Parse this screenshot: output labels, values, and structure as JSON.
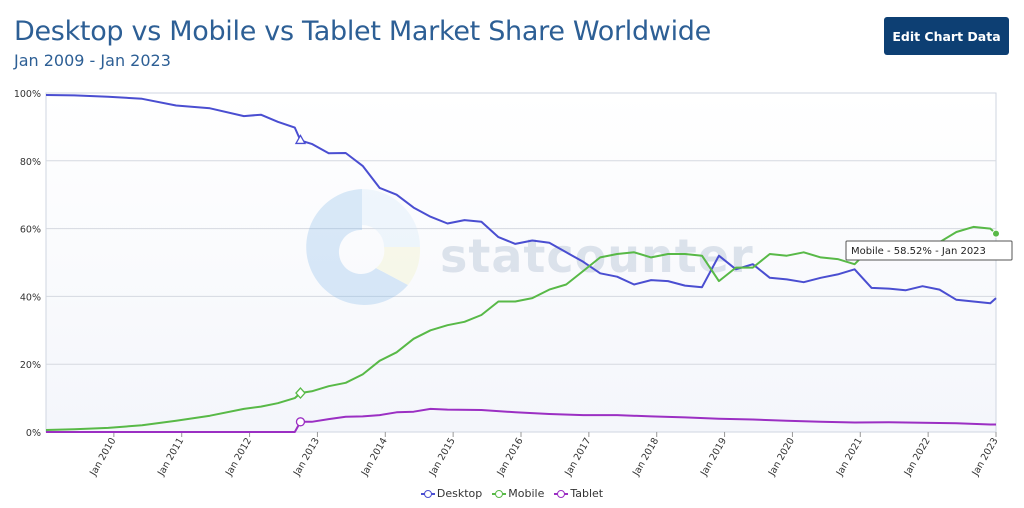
{
  "header": {
    "title": "Desktop vs Mobile vs Tablet Market Share Worldwide",
    "subtitle": "Jan 2009 - Jan 2023",
    "edit_button_label": "Edit Chart Data"
  },
  "watermark": {
    "text": "statcounter"
  },
  "tooltip": {
    "text": "Mobile - 58.52% - Jan 2023"
  },
  "chart_data": {
    "type": "line",
    "title": "Desktop vs Mobile vs Tablet Market Share Worldwide",
    "subtitle": "Jan 2009 - Jan 2023",
    "x_range": [
      "2009-01",
      "2023-01"
    ],
    "ylim": [
      0,
      100
    ],
    "y_ticks": [
      "0%",
      "20%",
      "40%",
      "60%",
      "80%",
      "100%"
    ],
    "y_tick_values": [
      0,
      20,
      40,
      60,
      80,
      100
    ],
    "x_tick_labels": [
      "Jan 2010",
      "Jan 2011",
      "Jan 2012",
      "Jan 2013",
      "Jan 2014",
      "Jan 2015",
      "Jan 2016",
      "Jan 2017",
      "Jan 2018",
      "Jan 2019",
      "Jan 2020",
      "Jan 2021",
      "Jan 2022",
      "Jan 2023"
    ],
    "x_tick_dates": [
      "2010-01",
      "2011-01",
      "2012-01",
      "2013-01",
      "2014-01",
      "2015-01",
      "2016-01",
      "2017-01",
      "2018-01",
      "2019-01",
      "2020-01",
      "2021-01",
      "2022-01",
      "2023-01"
    ],
    "grid": true,
    "legend_position": "bottom",
    "tooltip_point": {
      "series": "Mobile",
      "date": "2023-01",
      "value": 58.52
    },
    "series": [
      {
        "name": "Desktop",
        "color": "#4a4ed1",
        "points": [
          [
            "2009-01",
            99.4
          ],
          [
            "2009-06",
            99.3
          ],
          [
            "2009-12",
            98.9
          ],
          [
            "2010-06",
            98.3
          ],
          [
            "2010-12",
            96.3
          ],
          [
            "2011-06",
            95.5
          ],
          [
            "2011-12",
            93.2
          ],
          [
            "2012-03",
            93.6
          ],
          [
            "2012-06",
            91.5
          ],
          [
            "2012-09",
            89.8
          ],
          [
            "2012-10",
            86.0
          ],
          [
            "2012-12",
            85.0
          ],
          [
            "2013-03",
            82.2
          ],
          [
            "2013-06",
            82.3
          ],
          [
            "2013-09",
            78.5
          ],
          [
            "2013-12",
            72.0
          ],
          [
            "2014-03",
            70.0
          ],
          [
            "2014-06",
            66.2
          ],
          [
            "2014-09",
            63.5
          ],
          [
            "2014-12",
            61.5
          ],
          [
            "2015-03",
            62.5
          ],
          [
            "2015-06",
            62.0
          ],
          [
            "2015-09",
            57.5
          ],
          [
            "2015-12",
            55.5
          ],
          [
            "2016-03",
            56.5
          ],
          [
            "2016-06",
            55.8
          ],
          [
            "2016-09",
            53.0
          ],
          [
            "2016-12",
            50.2
          ],
          [
            "2017-03",
            46.8
          ],
          [
            "2017-06",
            45.8
          ],
          [
            "2017-09",
            43.5
          ],
          [
            "2017-12",
            44.8
          ],
          [
            "2018-03",
            44.5
          ],
          [
            "2018-06",
            43.2
          ],
          [
            "2018-09",
            42.7
          ],
          [
            "2018-12",
            52.0
          ],
          [
            "2019-03",
            48.0
          ],
          [
            "2019-06",
            49.5
          ],
          [
            "2019-09",
            45.5
          ],
          [
            "2019-12",
            45.0
          ],
          [
            "2020-03",
            44.2
          ],
          [
            "2020-06",
            45.5
          ],
          [
            "2020-09",
            46.5
          ],
          [
            "2020-12",
            48.0
          ],
          [
            "2021-03",
            42.5
          ],
          [
            "2021-06",
            42.3
          ],
          [
            "2021-09",
            41.8
          ],
          [
            "2021-12",
            43.0
          ],
          [
            "2022-03",
            42.0
          ],
          [
            "2022-06",
            39.0
          ],
          [
            "2022-09",
            38.5
          ],
          [
            "2022-12",
            38.0
          ],
          [
            "2023-01",
            39.5
          ]
        ]
      },
      {
        "name": "Mobile",
        "color": "#58b947",
        "points": [
          [
            "2009-01",
            0.6
          ],
          [
            "2009-06",
            0.8
          ],
          [
            "2009-12",
            1.2
          ],
          [
            "2010-06",
            2.0
          ],
          [
            "2010-12",
            3.3
          ],
          [
            "2011-06",
            4.8
          ],
          [
            "2011-12",
            6.8
          ],
          [
            "2012-03",
            7.5
          ],
          [
            "2012-06",
            8.5
          ],
          [
            "2012-09",
            10.0
          ],
          [
            "2012-10",
            11.5
          ],
          [
            "2012-12",
            12.0
          ],
          [
            "2013-03",
            13.5
          ],
          [
            "2013-06",
            14.5
          ],
          [
            "2013-09",
            17.0
          ],
          [
            "2013-12",
            21.0
          ],
          [
            "2014-03",
            23.5
          ],
          [
            "2014-06",
            27.5
          ],
          [
            "2014-09",
            30.0
          ],
          [
            "2014-12",
            31.5
          ],
          [
            "2015-03",
            32.5
          ],
          [
            "2015-06",
            34.5
          ],
          [
            "2015-09",
            38.5
          ],
          [
            "2015-12",
            38.5
          ],
          [
            "2016-03",
            39.5
          ],
          [
            "2016-06",
            42.0
          ],
          [
            "2016-09",
            43.5
          ],
          [
            "2016-12",
            47.5
          ],
          [
            "2017-03",
            51.5
          ],
          [
            "2017-06",
            52.5
          ],
          [
            "2017-09",
            53.0
          ],
          [
            "2017-12",
            51.5
          ],
          [
            "2018-03",
            52.5
          ],
          [
            "2018-06",
            52.5
          ],
          [
            "2018-09",
            52.0
          ],
          [
            "2018-12",
            44.5
          ],
          [
            "2019-03",
            48.5
          ],
          [
            "2019-06",
            48.5
          ],
          [
            "2019-09",
            52.5
          ],
          [
            "2019-12",
            52.0
          ],
          [
            "2020-03",
            53.0
          ],
          [
            "2020-06",
            51.5
          ],
          [
            "2020-09",
            51.0
          ],
          [
            "2020-12",
            49.5
          ],
          [
            "2021-03",
            54.5
          ],
          [
            "2021-06",
            55.0
          ],
          [
            "2021-09",
            56.0
          ],
          [
            "2021-12",
            55.0
          ],
          [
            "2022-03",
            56.0
          ],
          [
            "2022-06",
            59.0
          ],
          [
            "2022-09",
            60.5
          ],
          [
            "2022-12",
            60.0
          ],
          [
            "2023-01",
            58.52
          ]
        ]
      },
      {
        "name": "Tablet",
        "color": "#9b2fc3",
        "points": [
          [
            "2009-01",
            0
          ],
          [
            "2010-01",
            0
          ],
          [
            "2011-01",
            0
          ],
          [
            "2012-01",
            0
          ],
          [
            "2012-09",
            0
          ],
          [
            "2012-10",
            3.0
          ],
          [
            "2012-12",
            3.0
          ],
          [
            "2013-03",
            3.8
          ],
          [
            "2013-06",
            4.5
          ],
          [
            "2013-09",
            4.6
          ],
          [
            "2013-12",
            5.0
          ],
          [
            "2014-03",
            5.8
          ],
          [
            "2014-06",
            6.0
          ],
          [
            "2014-09",
            6.8
          ],
          [
            "2014-12",
            6.6
          ],
          [
            "2015-06",
            6.5
          ],
          [
            "2015-12",
            5.8
          ],
          [
            "2016-06",
            5.3
          ],
          [
            "2016-12",
            5.0
          ],
          [
            "2017-06",
            5.0
          ],
          [
            "2017-12",
            4.6
          ],
          [
            "2018-06",
            4.3
          ],
          [
            "2018-12",
            3.9
          ],
          [
            "2019-06",
            3.7
          ],
          [
            "2019-12",
            3.3
          ],
          [
            "2020-06",
            3.0
          ],
          [
            "2020-12",
            2.8
          ],
          [
            "2021-06",
            2.9
          ],
          [
            "2021-12",
            2.7
          ],
          [
            "2022-06",
            2.6
          ],
          [
            "2022-12",
            2.2
          ],
          [
            "2023-01",
            2.2
          ]
        ]
      }
    ]
  }
}
